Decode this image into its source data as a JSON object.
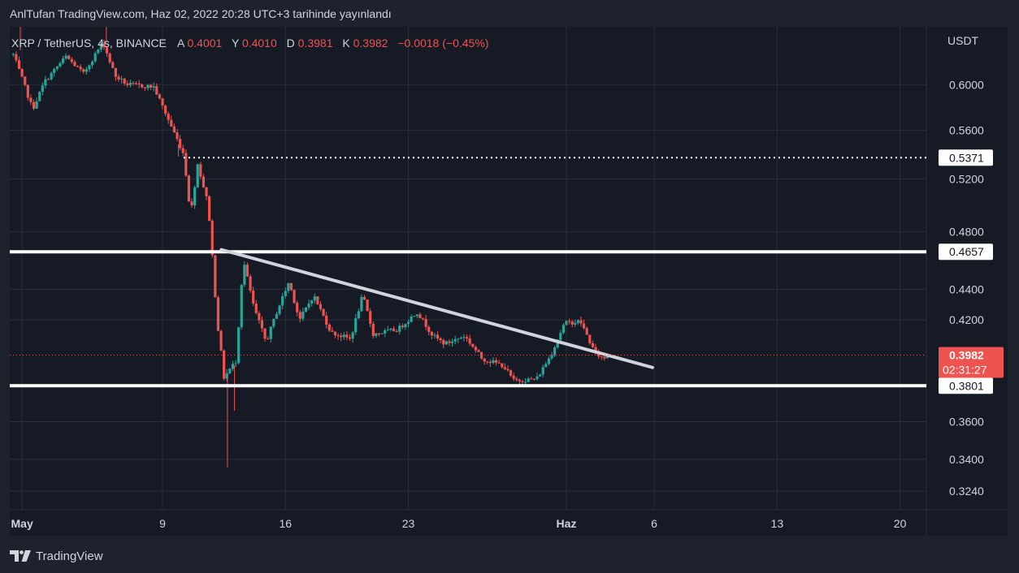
{
  "header": {
    "publisher_line": "AnlTufan TradingView.com, Haz 02, 2022 20:28 UTC+3 tarihinde yayınlandı"
  },
  "footer": {
    "brand": "TradingView",
    "logo_icon": "tradingview-logo-icon"
  },
  "colors": {
    "up": "#26a69a",
    "down": "#ef5350",
    "background": "#161a25",
    "grid": "#2a2e39",
    "support_line": "#ffffff",
    "trendline": "#d1d4dc",
    "price_badge": "#ef5350"
  },
  "chart_data": {
    "type": "candlestick",
    "legend": {
      "symbol": "XRP / TetherUS, 4s, BINANCE",
      "open_label": "A",
      "open": "0.4001",
      "high_label": "Y",
      "high": "0.4010",
      "low_label": "D",
      "low": "0.3981",
      "close_label": "K",
      "close": "0.3982",
      "change": "−0.0018 (−0.45%)"
    },
    "currency_label": "USDT",
    "y_ticks": [
      "0.6000",
      "0.5600",
      "0.5200",
      "0.4800",
      "0.4400",
      "0.4200",
      "0.3600",
      "0.3400",
      "0.3240"
    ],
    "x_ticks": [
      "May",
      "9",
      "16",
      "23",
      "Haz",
      "6",
      "13",
      "20"
    ],
    "x_tick_days": [
      1,
      9,
      16,
      23,
      32,
      37,
      44,
      51
    ],
    "ylim": [
      0.315,
      0.655
    ],
    "xlim_days": [
      0.3,
      52.5
    ],
    "log_scale": true,
    "grid": true,
    "levels": {
      "resistance": {
        "value": 0.4657,
        "label": "0.4657"
      },
      "support": {
        "value": 0.3801,
        "label": "0.3801"
      },
      "dotted_high": {
        "value": 0.5371,
        "label": "0.5371"
      }
    },
    "trendline": {
      "start": {
        "day": 12.35,
        "value": 0.4672
      },
      "end": {
        "day": 36.9,
        "value": 0.3908
      }
    },
    "current_price": {
      "value": 0.3982,
      "label": "0.3982",
      "countdown": "02:31:27"
    },
    "price_path": [
      {
        "day": 0.5,
        "value": 0.628
      },
      {
        "day": 1.6,
        "value": 0.578
      },
      {
        "day": 2.3,
        "value": 0.603
      },
      {
        "day": 3.5,
        "value": 0.626
      },
      {
        "day": 4.5,
        "value": 0.61
      },
      {
        "day": 5.6,
        "value": 0.64
      },
      {
        "day": 6.3,
        "value": 0.608
      },
      {
        "day": 7.0,
        "value": 0.6
      },
      {
        "day": 8.5,
        "value": 0.598
      },
      {
        "day": 9.3,
        "value": 0.57
      },
      {
        "day": 10.2,
        "value": 0.54
      },
      {
        "day": 10.6,
        "value": 0.492
      },
      {
        "day": 11.0,
        "value": 0.532
      },
      {
        "day": 11.6,
        "value": 0.5
      },
      {
        "day": 12.1,
        "value": 0.42
      },
      {
        "day": 12.5,
        "value": 0.385
      },
      {
        "day": 13.2,
        "value": 0.395
      },
      {
        "day": 13.6,
        "value": 0.46
      },
      {
        "day": 14.2,
        "value": 0.428
      },
      {
        "day": 14.9,
        "value": 0.406
      },
      {
        "day": 15.5,
        "value": 0.425
      },
      {
        "day": 16.2,
        "value": 0.445
      },
      {
        "day": 16.8,
        "value": 0.42
      },
      {
        "day": 17.6,
        "value": 0.436
      },
      {
        "day": 18.6,
        "value": 0.412
      },
      {
        "day": 19.7,
        "value": 0.408
      },
      {
        "day": 20.4,
        "value": 0.436
      },
      {
        "day": 21.0,
        "value": 0.411
      },
      {
        "day": 22.4,
        "value": 0.414
      },
      {
        "day": 23.5,
        "value": 0.425
      },
      {
        "day": 24.4,
        "value": 0.41
      },
      {
        "day": 25.1,
        "value": 0.405
      },
      {
        "day": 26.2,
        "value": 0.41
      },
      {
        "day": 27.2,
        "value": 0.396
      },
      {
        "day": 28.4,
        "value": 0.392
      },
      {
        "day": 29.0,
        "value": 0.383
      },
      {
        "day": 30.3,
        "value": 0.384
      },
      {
        "day": 31.1,
        "value": 0.398
      },
      {
        "day": 31.9,
        "value": 0.418
      },
      {
        "day": 32.8,
        "value": 0.419
      },
      {
        "day": 33.6,
        "value": 0.4
      },
      {
        "day": 34.1,
        "value": 0.396
      },
      {
        "day": 34.4,
        "value": 0.3982
      }
    ]
  }
}
